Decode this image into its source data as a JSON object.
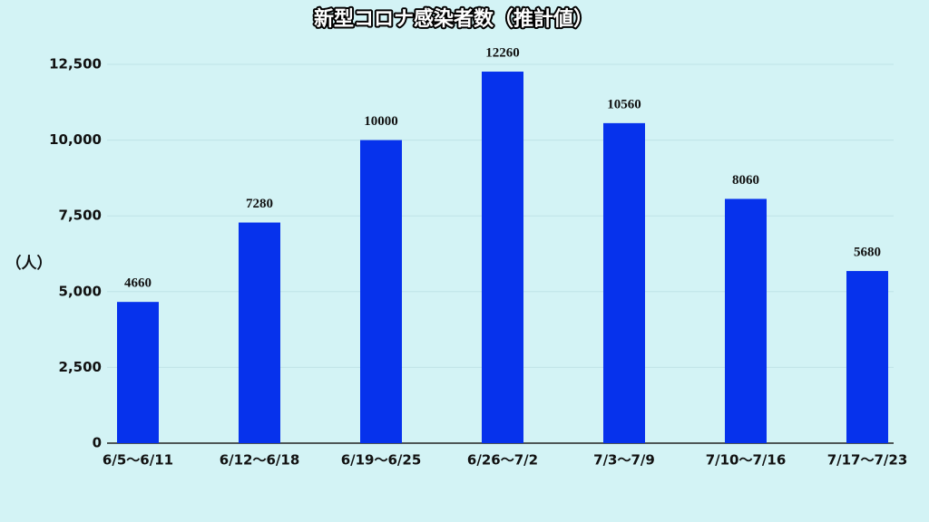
{
  "chart_data": {
    "type": "bar",
    "title": "新型コロナ感染者数（推計値）",
    "y_label": "（人）",
    "categories": [
      "6/5〜6/11",
      "6/12〜6/18",
      "6/19〜6/25",
      "6/26〜7/2",
      "7/3〜7/9",
      "7/10〜7/16",
      "7/17〜7/23"
    ],
    "values": [
      4660,
      7280,
      10000,
      12260,
      10560,
      8060,
      5680
    ],
    "color": "#0632ec",
    "ylim": [
      0,
      12500
    ],
    "yticks": [
      0,
      {
        "value": 2500,
        "label": "2,500"
      },
      {
        "value": 5000,
        "label": "5,000"
      },
      {
        "value": 7500,
        "label": "7,500"
      },
      {
        "value": 10000,
        "label": "10,000"
      },
      {
        "value": 12500,
        "label": "12,500"
      }
    ],
    "grid": true
  }
}
